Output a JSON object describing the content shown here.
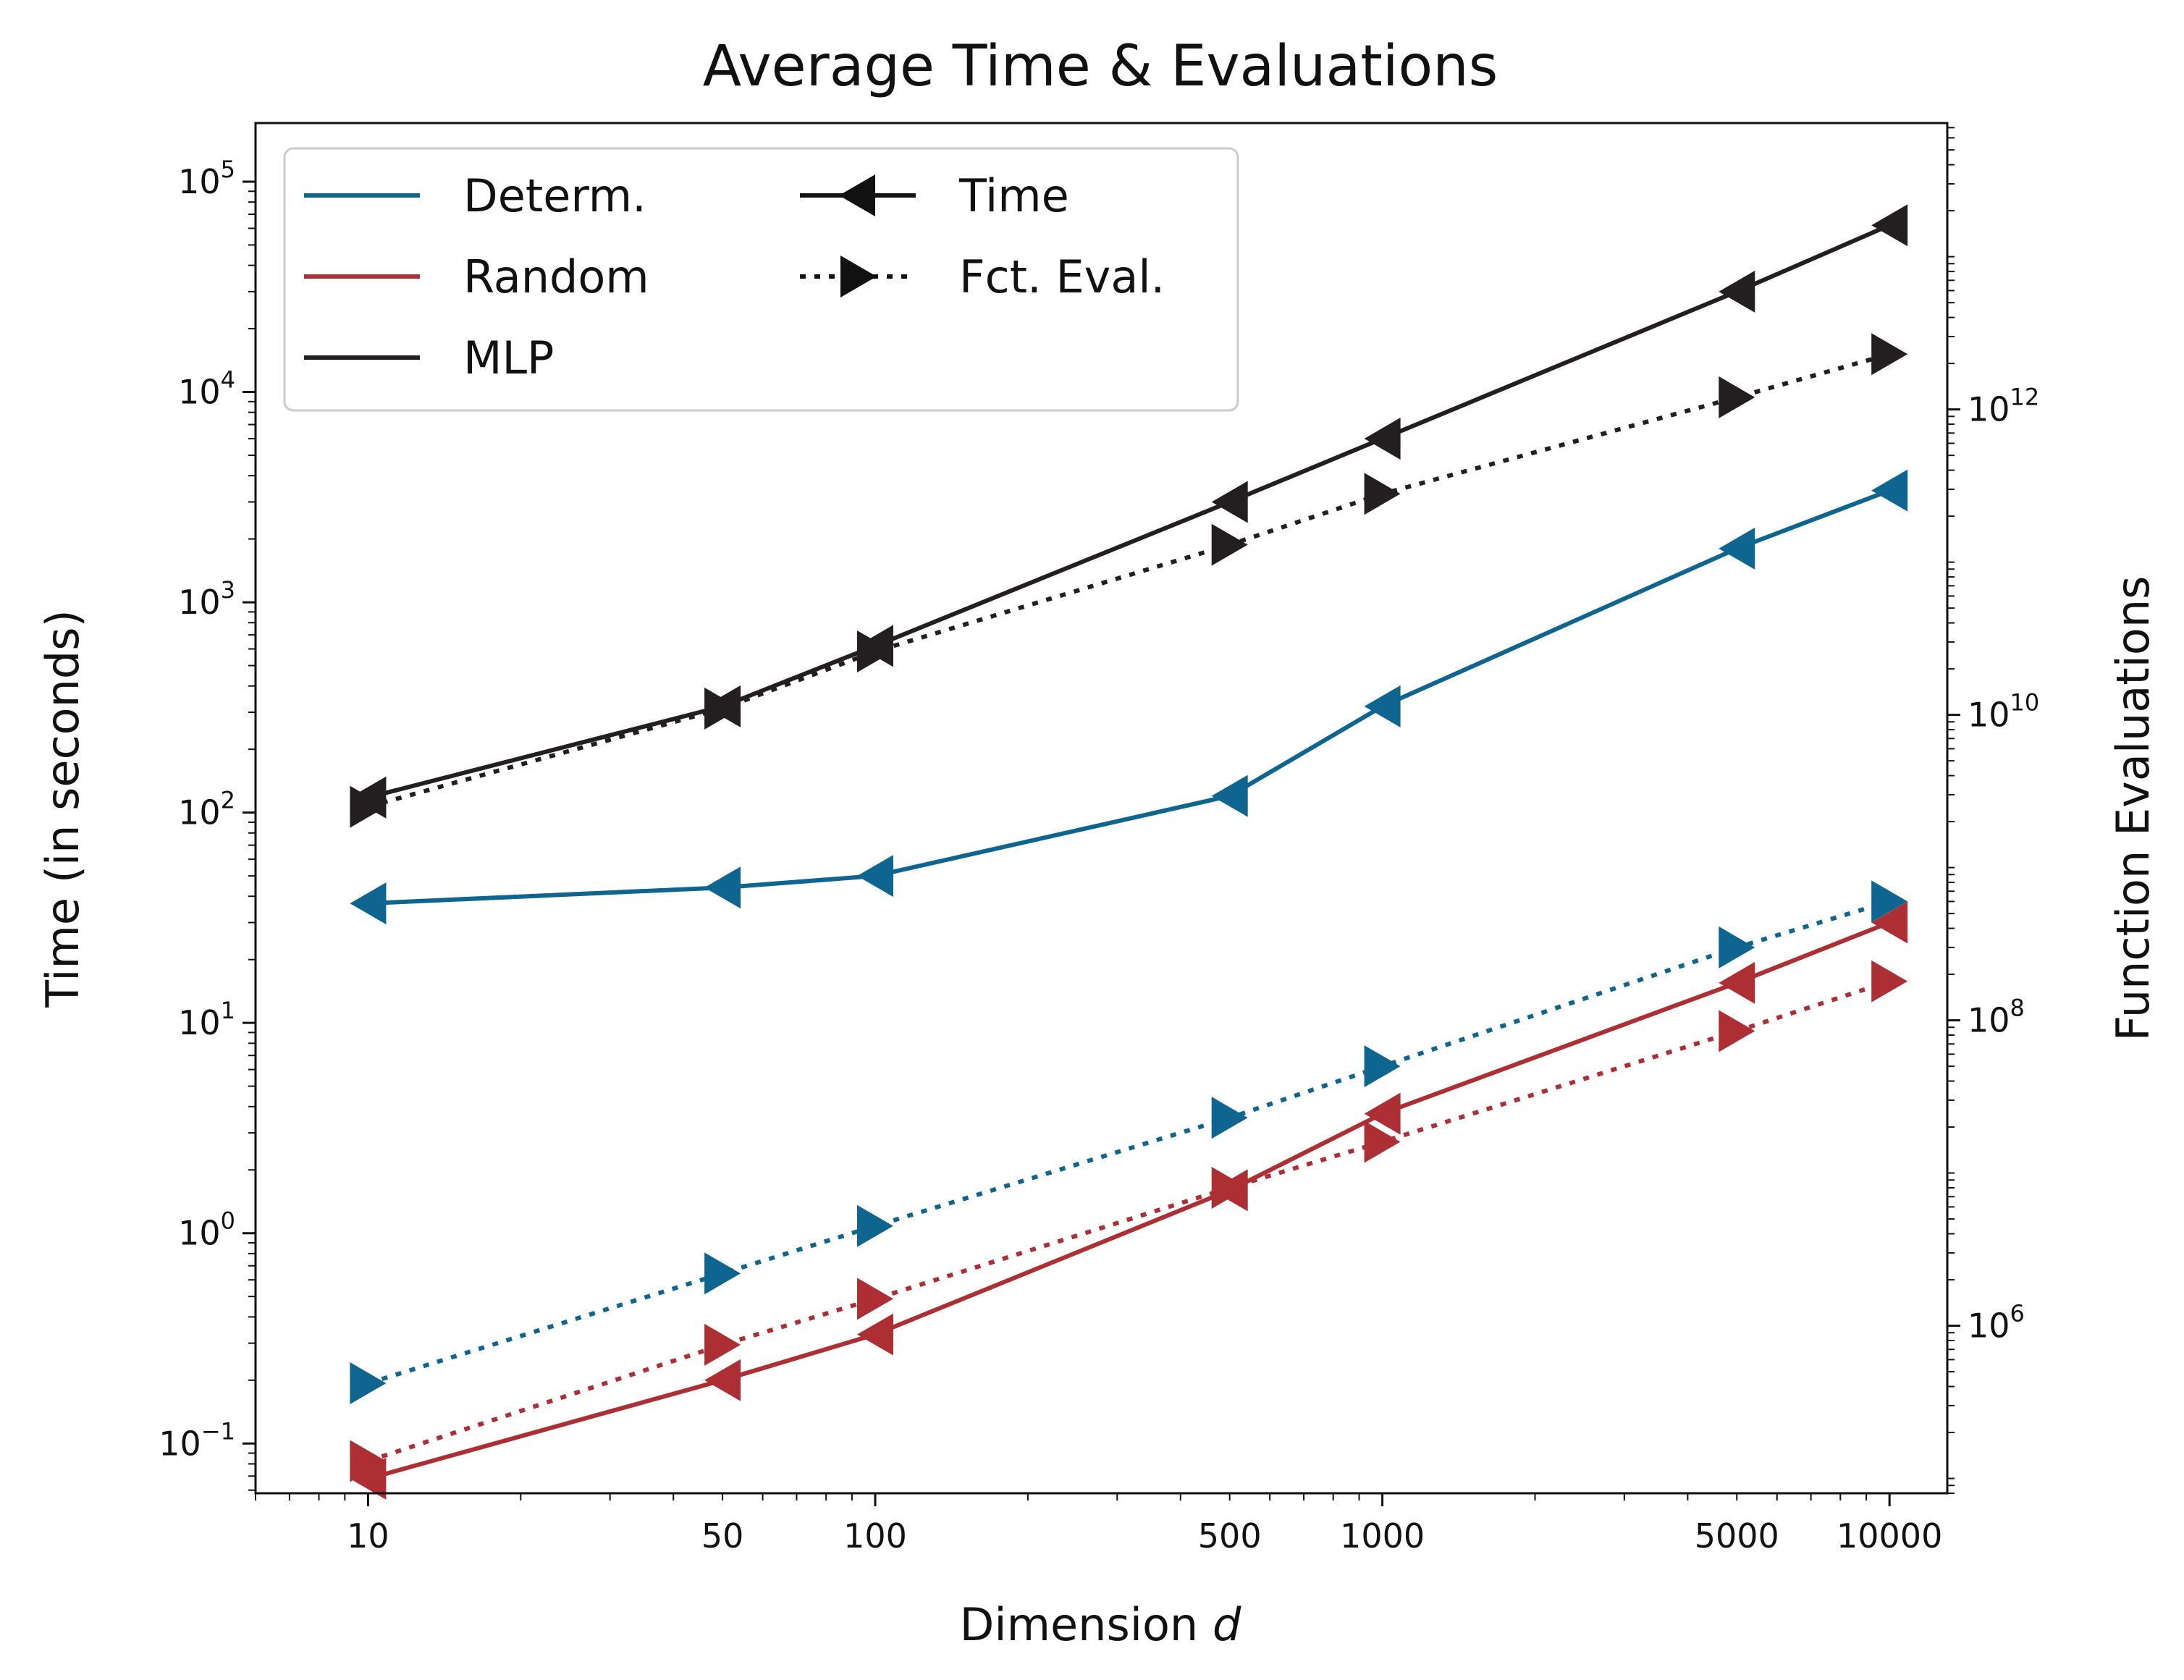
{
  "chart_data": {
    "type": "line",
    "title": "Average Time & Evaluations",
    "xlabel": "Dimension",
    "xlabel_var": "d",
    "ylabel": "Time (in seconds)",
    "y2label": "Function Evaluations",
    "x_scale": "log",
    "y_scale": "log",
    "y2_scale": "log",
    "x": [
      10,
      50,
      100,
      500,
      1000,
      5000,
      10000
    ],
    "x_tick_labels": [
      "10",
      "50",
      "100",
      "500",
      "1000",
      "5000",
      "10000"
    ],
    "xlim": [
      6,
      13000
    ],
    "ylim": [
      0.058,
      190000
    ],
    "y2lim": [
      80000,
      75000000000000
    ],
    "y_ticks": [
      {
        "base": "10",
        "exp": "−1"
      },
      {
        "base": "10",
        "exp": "0"
      },
      {
        "base": "10",
        "exp": "1"
      },
      {
        "base": "10",
        "exp": "2"
      },
      {
        "base": "10",
        "exp": "3"
      },
      {
        "base": "10",
        "exp": "4"
      },
      {
        "base": "10",
        "exp": "5"
      }
    ],
    "y2_ticks": [
      {
        "base": "10",
        "exp": "6"
      },
      {
        "base": "10",
        "exp": "8"
      },
      {
        "base": "10",
        "exp": "10"
      },
      {
        "base": "10",
        "exp": "12"
      }
    ],
    "grid": false,
    "legend_position": "top-left",
    "legend": {
      "methods": [
        {
          "label": "Determ.",
          "color": "#0e6590"
        },
        {
          "label": "Random",
          "color": "#ad2f33"
        },
        {
          "label": "MLP",
          "color": "#231f20"
        }
      ],
      "styles": [
        {
          "label": "Time",
          "linestyle": "solid",
          "marker": "triangle-left"
        },
        {
          "label": "Fct. Eval.",
          "linestyle": "dotted",
          "marker": "triangle-right"
        }
      ]
    },
    "series": [
      {
        "method": "Determ.",
        "metric": "Time",
        "axis": "left",
        "color": "#0e6590",
        "values": [
          37,
          44,
          50,
          120,
          320,
          1800,
          3400
        ]
      },
      {
        "method": "Random",
        "metric": "Time",
        "axis": "left",
        "color": "#ad2f33",
        "values": [
          0.068,
          0.2,
          0.33,
          1.6,
          3.7,
          15.5,
          30
        ]
      },
      {
        "method": "MLP",
        "metric": "Time",
        "axis": "left",
        "color": "#231f20",
        "values": [
          118,
          320,
          620,
          3000,
          6000,
          30000,
          62000
        ]
      },
      {
        "method": "Determ.",
        "metric": "Fct. Eval.",
        "axis": "right",
        "color": "#0e6590",
        "values": [
          420000,
          2200000,
          4500000,
          23000000,
          50000000,
          300000000,
          600000000
        ]
      },
      {
        "method": "Random",
        "metric": "Fct. Eval.",
        "axis": "right",
        "color": "#ad2f33",
        "values": [
          130000,
          750000,
          1500000,
          8000000,
          16000000,
          85000000,
          180000000
        ]
      },
      {
        "method": "MLP",
        "metric": "Fct. Eval.",
        "axis": "right",
        "color": "#231f20",
        "values": [
          2500000000,
          11000000000,
          26000000000,
          130000000000,
          280000000000,
          1200000000000,
          2300000000000
        ]
      }
    ]
  }
}
